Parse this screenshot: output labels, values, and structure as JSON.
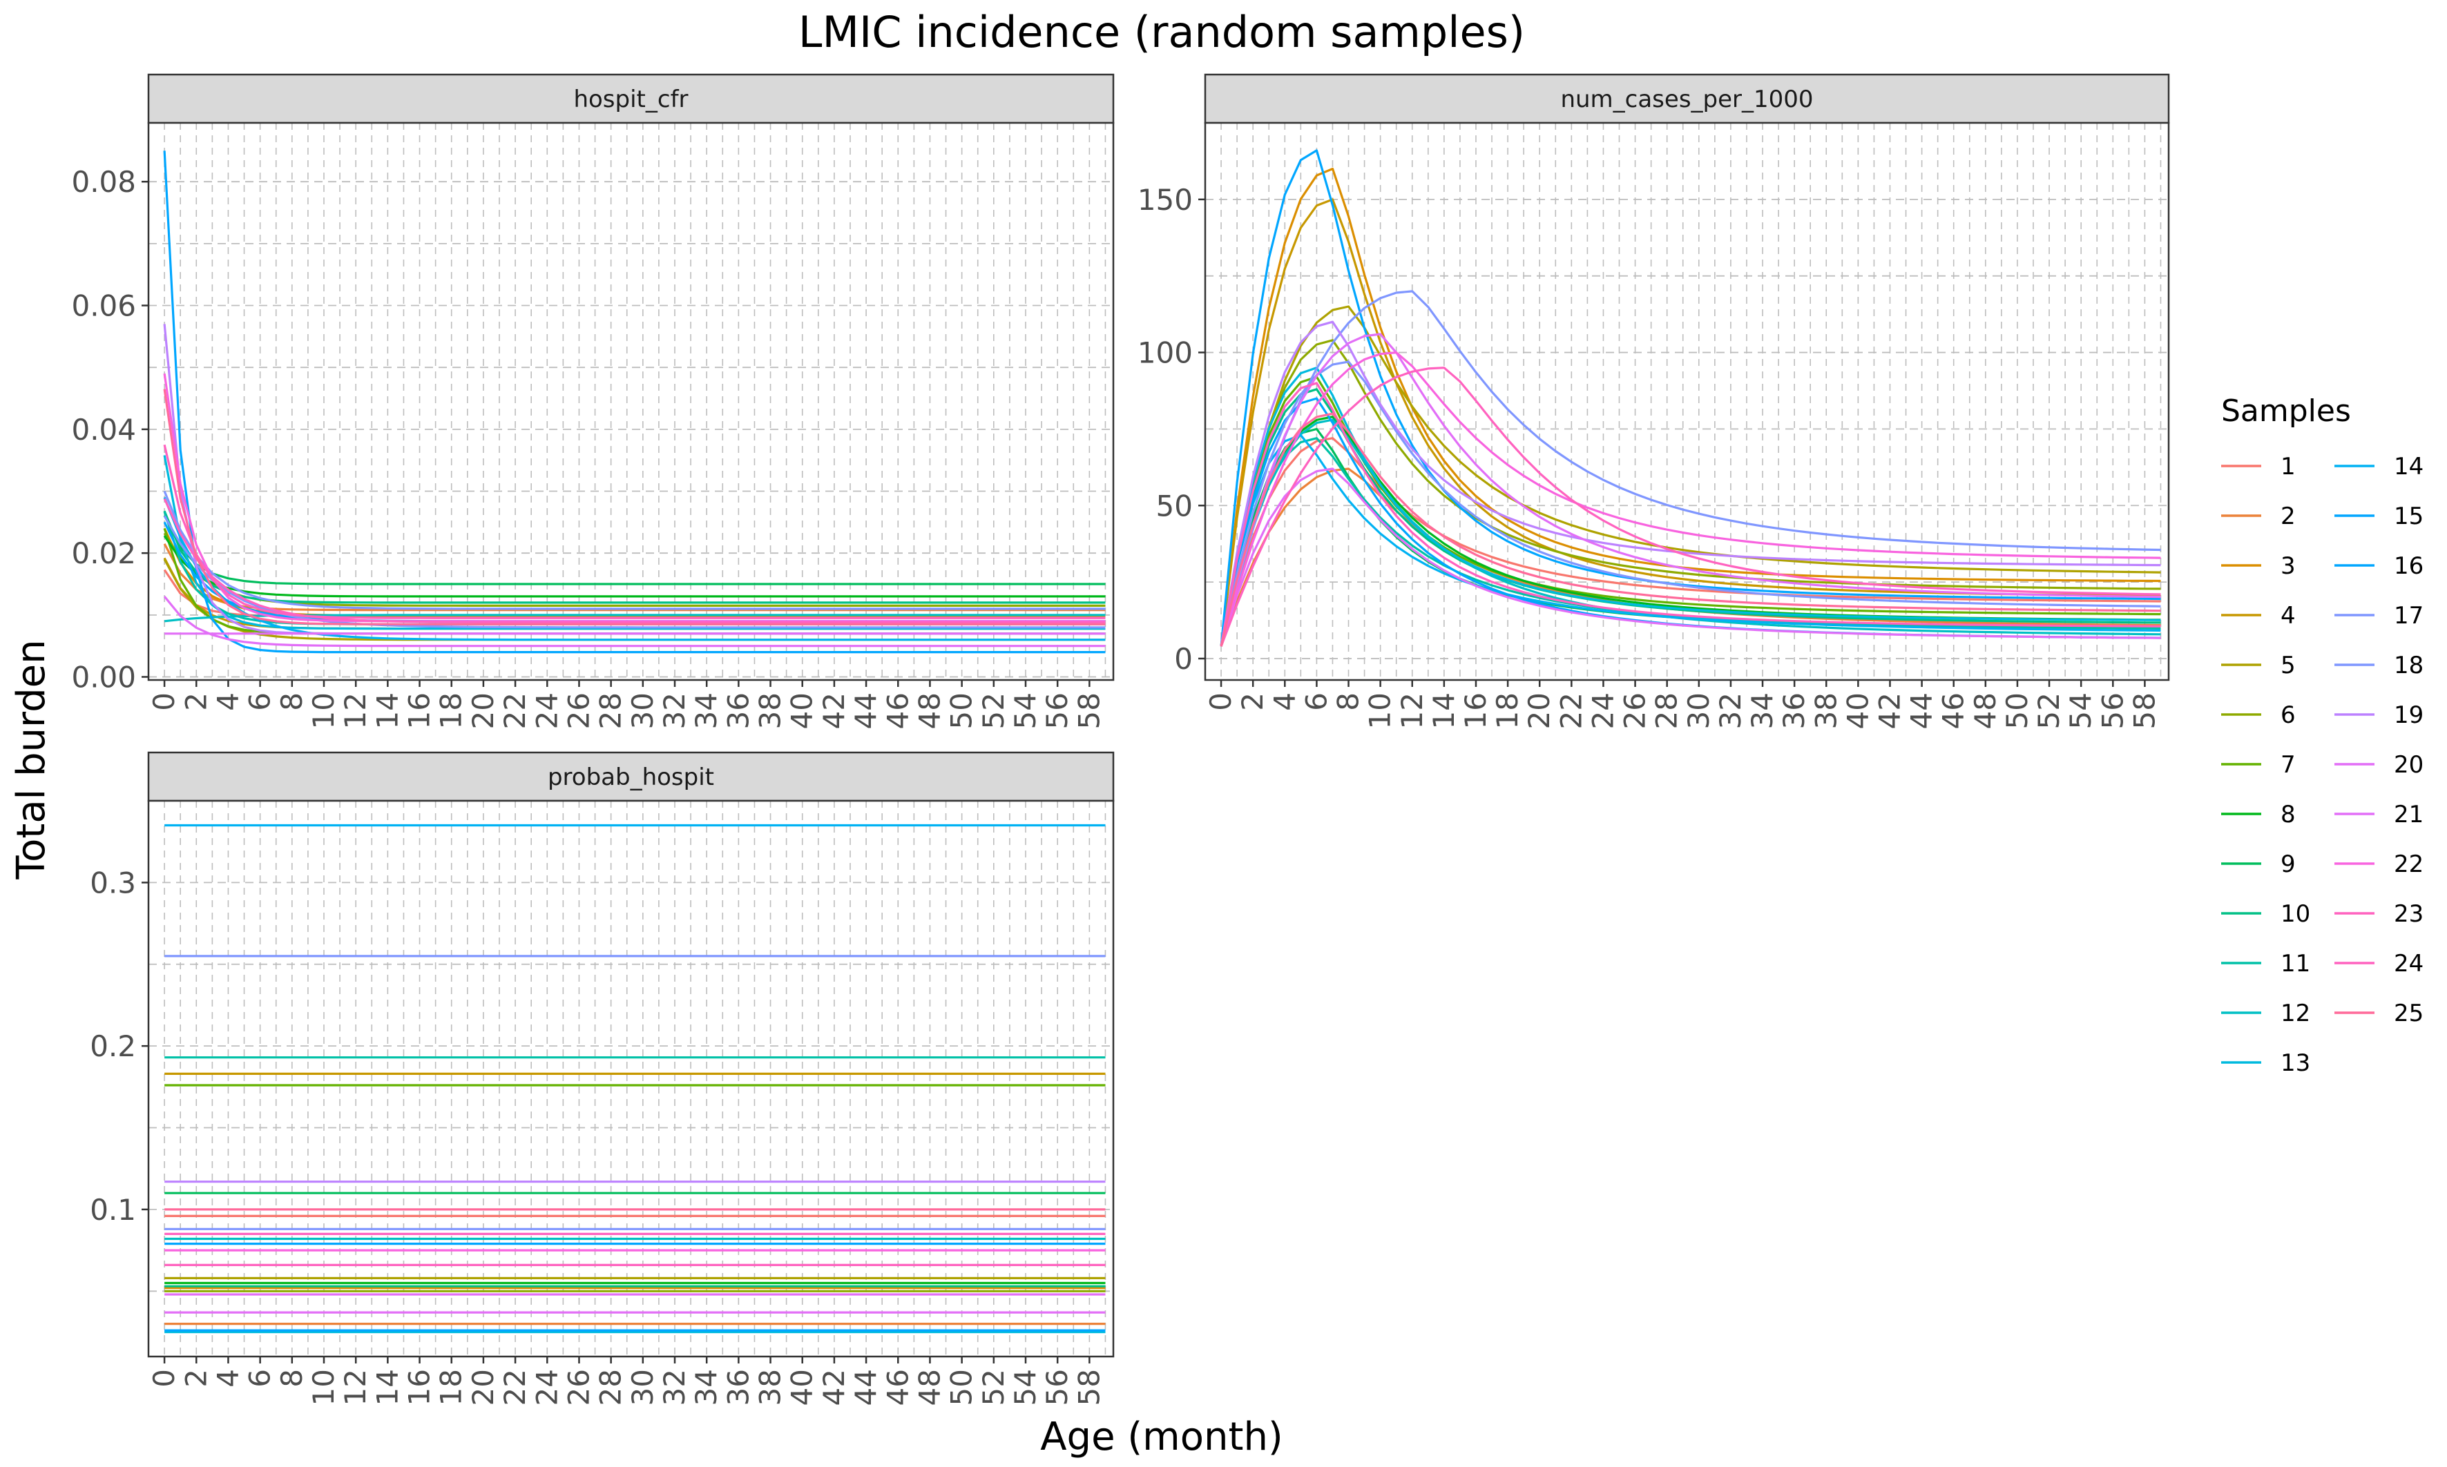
{
  "chart_data": {
    "type": "line",
    "title": "LMIC incidence (random samples)",
    "xlabel": "Age (month)",
    "ylabel": "Total burden",
    "x": [
      0,
      1,
      2,
      3,
      4,
      5,
      6,
      7,
      8,
      9,
      10,
      11,
      12,
      13,
      14,
      15,
      16,
      17,
      18,
      19,
      20,
      21,
      22,
      23,
      24,
      25,
      26,
      27,
      28,
      29,
      30,
      31,
      32,
      33,
      34,
      35,
      36,
      37,
      38,
      39,
      40,
      41,
      42,
      43,
      44,
      45,
      46,
      47,
      48,
      49,
      50,
      51,
      52,
      53,
      54,
      55,
      56,
      57,
      58,
      59
    ],
    "xticks": [
      "0",
      "2",
      "4",
      "6",
      "8",
      "10",
      "12",
      "14",
      "16",
      "18",
      "20",
      "22",
      "24",
      "26",
      "28",
      "30",
      "32",
      "34",
      "36",
      "38",
      "40",
      "42",
      "44",
      "46",
      "48",
      "50",
      "52",
      "54",
      "56",
      "58"
    ],
    "xlim": [
      -1,
      59.5
    ],
    "grid": true,
    "legend": {
      "title": "Samples",
      "position": "right",
      "labels": [
        "1",
        "2",
        "3",
        "4",
        "5",
        "6",
        "7",
        "8",
        "9",
        "10",
        "11",
        "12",
        "13",
        "14",
        "15",
        "16",
        "17",
        "18",
        "19",
        "20",
        "21",
        "22",
        "23",
        "24",
        "25"
      ],
      "colors": [
        "#F8766D",
        "#EC8239",
        "#DB8E00",
        "#C79800",
        "#AEA200",
        "#8FAA00",
        "#64B200",
        "#00B81B",
        "#00BD5C",
        "#00C085",
        "#00C1A7",
        "#00BFC4",
        "#00BADE",
        "#00B2F3",
        "#00A6FF",
        "#00A6FF",
        "#7F96FF",
        "#7F96FF",
        "#BC81FF",
        "#E26EF7",
        "#E26EF7",
        "#F863DF",
        "#FF62BF",
        "#FF62BF",
        "#FF6A9A"
      ]
    },
    "panels": [
      {
        "name": "hospit_cfr",
        "ylim": [
          -0.0005,
          0.0895
        ],
        "yticks": [
          "0.00",
          "0.02",
          "0.04",
          "0.06",
          "0.08"
        ],
        "ytick_values": [
          0,
          0.02,
          0.04,
          0.06,
          0.08
        ],
        "series": [
          {
            "model": "exp",
            "a": 0.0098,
            "b": 0.0075,
            "t": 1.4
          },
          {
            "model": "exp",
            "a": 0.0108,
            "b": 0.0107,
            "t": 1.7
          },
          {
            "model": "exp",
            "a": 0.0099,
            "b": 0.0141,
            "t": 2.0
          },
          {
            "model": "exp",
            "a": 0.0078,
            "b": 0.0114,
            "t": 1.8
          },
          {
            "model": "exp",
            "a": 0.006,
            "b": 0.013,
            "t": 2.2
          },
          {
            "model": "exp",
            "a": 0.0115,
            "b": 0.0117,
            "t": 2.4
          },
          {
            "model": "exp",
            "a": 0.007,
            "b": 0.017,
            "t": 1.5
          },
          {
            "model": "exp",
            "a": 0.013,
            "b": 0.0098,
            "t": 2.0
          },
          {
            "model": "exp",
            "a": 0.015,
            "b": 0.0111,
            "t": 1.6
          },
          {
            "model": "exp",
            "a": 0.012,
            "b": 0.0148,
            "t": 1.8
          },
          {
            "model": "exp",
            "a": 0.0085,
            "b": 0.0182,
            "t": 1.7
          },
          {
            "model": "exp",
            "a": 0.01,
            "b": -0.001,
            "t": 3.0
          },
          {
            "model": "exp",
            "a": 0.0078,
            "b": 0.028,
            "t": 1.5
          },
          {
            "model": "exp",
            "a": 0.006,
            "b": 0.023,
            "t": 3.0
          },
          {
            "model": "exp",
            "a": 0.004,
            "b": 0.081,
            "t": 1.1
          },
          {
            "model": "exp",
            "a": 0.009,
            "b": 0.016,
            "t": 2.5
          },
          {
            "model": "exp",
            "a": 0.008,
            "b": 0.018,
            "t": 3.5
          },
          {
            "model": "exp",
            "a": 0.011,
            "b": 0.019,
            "t": 2.5
          },
          {
            "model": "exp",
            "a": 0.007,
            "b": 0.05,
            "t": 1.3
          },
          {
            "model": "exp",
            "a": 0.005,
            "b": 0.008,
            "t": 2.0
          },
          {
            "model": "exp",
            "a": 0.007,
            "b": 0.0,
            "t": 1.0
          },
          {
            "model": "exp",
            "a": 0.009,
            "b": 0.04,
            "t": 1.7
          },
          {
            "model": "exp",
            "a": 0.0095,
            "b": 0.028,
            "t": 2.0
          },
          {
            "model": "exp",
            "a": 0.0088,
            "b": 0.02,
            "t": 3.0
          },
          {
            "model": "exp",
            "a": 0.0085,
            "b": 0.038,
            "t": 1.6
          }
        ]
      },
      {
        "name": "num_cases_per_1000",
        "ylim": [
          -7,
          175
        ],
        "yticks": [
          "0",
          "50",
          "100",
          "150"
        ],
        "ytick_values": [
          0,
          50,
          100,
          150
        ],
        "series": [
          {
            "model": "hump",
            "peak": 72,
            "pa": 7,
            "s": 0.4,
            "end": 18
          },
          {
            "model": "hump",
            "peak": 62,
            "pa": 8,
            "s": 0.42,
            "end": 10
          },
          {
            "model": "hump",
            "peak": 160,
            "pa": 7,
            "s": 0.32,
            "end": 25
          },
          {
            "model": "hump",
            "peak": 150,
            "pa": 7,
            "s": 0.34,
            "end": 20
          },
          {
            "model": "hump",
            "peak": 115,
            "pa": 8,
            "s": 0.4,
            "end": 27
          },
          {
            "model": "hump",
            "peak": 104,
            "pa": 7,
            "s": 0.38,
            "end": 22
          },
          {
            "model": "hump",
            "peak": 92,
            "pa": 6,
            "s": 0.36,
            "end": 14
          },
          {
            "model": "hump",
            "peak": 79,
            "pa": 7,
            "s": 0.38,
            "end": 12
          },
          {
            "model": "hump",
            "peak": 75,
            "pa": 6,
            "s": 0.36,
            "end": 10
          },
          {
            "model": "hump",
            "peak": 88,
            "pa": 6,
            "s": 0.38,
            "end": 11
          },
          {
            "model": "hump",
            "peak": 72,
            "pa": 6,
            "s": 0.4,
            "end": 9
          },
          {
            "model": "hump",
            "peak": 78,
            "pa": 7,
            "s": 0.4,
            "end": 7
          },
          {
            "model": "hump",
            "peak": 95,
            "pa": 6,
            "s": 0.36,
            "end": 12
          },
          {
            "model": "hump",
            "peak": 73,
            "pa": 5,
            "s": 0.42,
            "end": 8
          },
          {
            "model": "hump",
            "peak": 166,
            "pa": 6,
            "s": 0.33,
            "end": 19
          },
          {
            "model": "hump",
            "peak": 85,
            "pa": 6,
            "s": 0.38,
            "end": 6
          },
          {
            "model": "hump",
            "peak": 120,
            "pa": 12,
            "s": 0.42,
            "end": 34
          },
          {
            "model": "hump",
            "peak": 97,
            "pa": 8,
            "s": 0.4,
            "end": 16
          },
          {
            "model": "hump",
            "peak": 110,
            "pa": 7,
            "s": 0.36,
            "end": 30
          },
          {
            "model": "hump",
            "peak": 62,
            "pa": 7,
            "s": 0.4,
            "end": 6
          },
          {
            "model": "hump",
            "peak": 106,
            "pa": 10,
            "s": 0.4,
            "end": 19
          },
          {
            "model": "hump",
            "peak": 100,
            "pa": 11,
            "s": 0.4,
            "end": 32
          },
          {
            "model": "hump",
            "peak": 95,
            "pa": 14,
            "s": 0.4,
            "end": 20
          },
          {
            "model": "hump",
            "peak": 90,
            "pa": 6,
            "s": 0.36,
            "end": 10
          },
          {
            "model": "hump",
            "peak": 80,
            "pa": 7,
            "s": 0.38,
            "end": 15
          }
        ]
      },
      {
        "name": "probab_hospit",
        "ylim": [
          0.01,
          0.35
        ],
        "yticks": [
          "0.1",
          "0.2",
          "0.3"
        ],
        "ytick_values": [
          0.1,
          0.2,
          0.3
        ],
        "series": [
          {
            "model": "const",
            "v": 0.096
          },
          {
            "model": "const",
            "v": 0.03
          },
          {
            "model": "const",
            "v": 0.052
          },
          {
            "model": "const",
            "v": 0.183
          },
          {
            "model": "const",
            "v": 0.058
          },
          {
            "model": "const",
            "v": 0.05
          },
          {
            "model": "const",
            "v": 0.176
          },
          {
            "model": "const",
            "v": 0.055
          },
          {
            "model": "const",
            "v": 0.11
          },
          {
            "model": "const",
            "v": 0.053
          },
          {
            "model": "const",
            "v": 0.193
          },
          {
            "model": "const",
            "v": 0.082
          },
          {
            "model": "const",
            "v": 0.025
          },
          {
            "model": "const",
            "v": 0.335
          },
          {
            "model": "const",
            "v": 0.026
          },
          {
            "model": "const",
            "v": 0.079
          },
          {
            "model": "const",
            "v": 0.255
          },
          {
            "model": "const",
            "v": 0.088
          },
          {
            "model": "const",
            "v": 0.117
          },
          {
            "model": "const",
            "v": 0.037
          },
          {
            "model": "const",
            "v": 0.048
          },
          {
            "model": "const",
            "v": 0.075
          },
          {
            "model": "const",
            "v": 0.085
          },
          {
            "model": "const",
            "v": 0.066
          },
          {
            "model": "const",
            "v": 0.1
          }
        ]
      }
    ]
  }
}
